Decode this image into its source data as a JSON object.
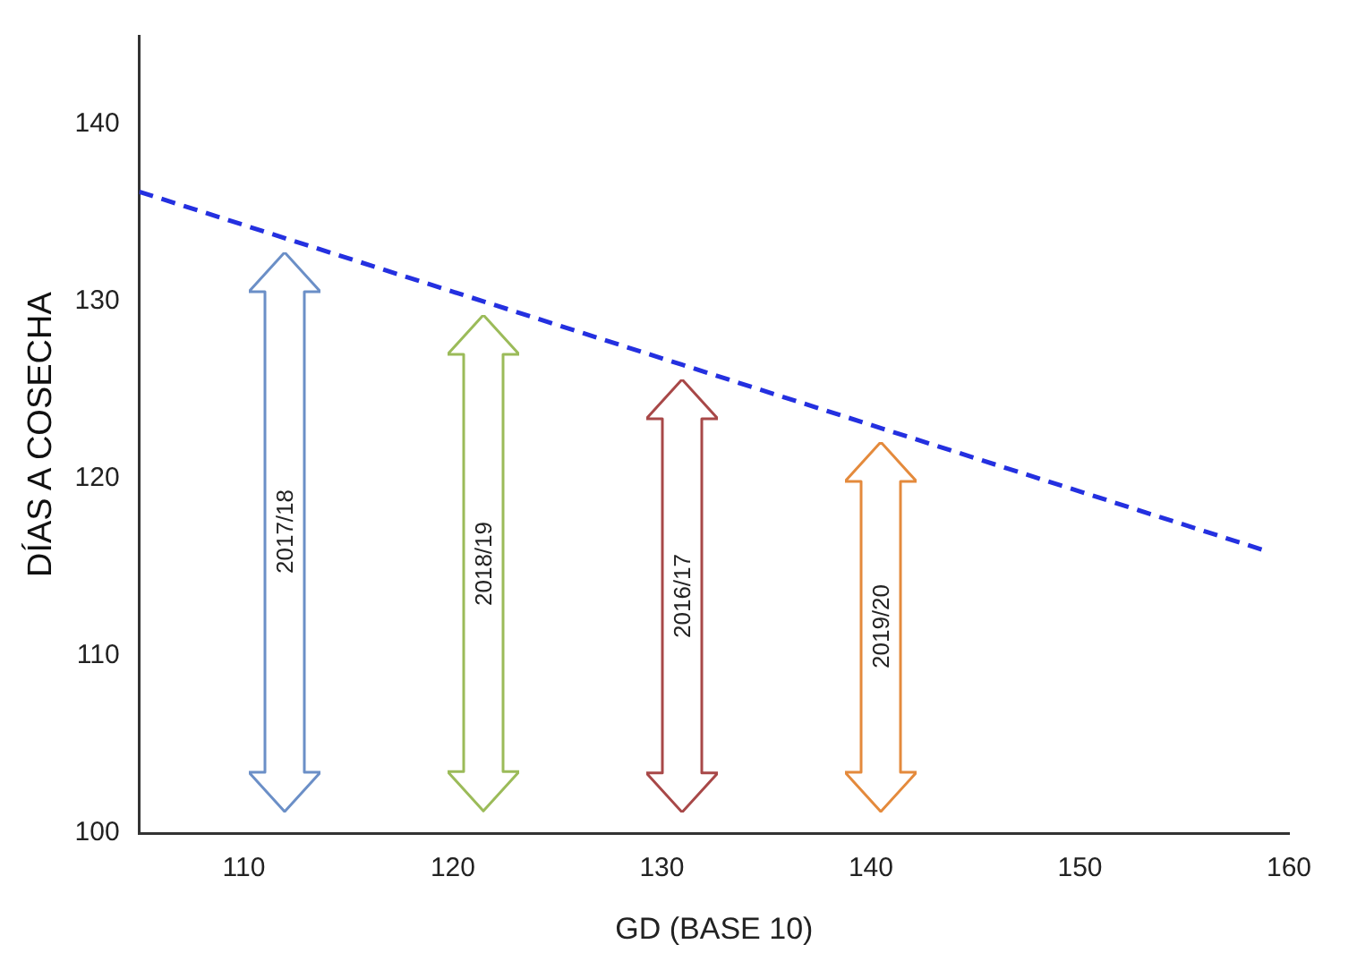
{
  "chart_data": {
    "type": "line",
    "xlabel": "GD (BASE 10)",
    "ylabel": "DÍAS A COSECHA",
    "series": [
      {
        "color": "#2430e0",
        "x": [
          105,
          159
        ],
        "values": [
          136.2,
          115.9
        ],
        "line_style": "dashed",
        "marker": "none"
      }
    ],
    "xlim": [
      105,
      160
    ],
    "xticks": [
      110,
      120,
      130,
      140,
      150,
      160
    ],
    "ylim": [
      100,
      145
    ],
    "yticks": [
      100,
      110,
      120,
      130,
      140
    ],
    "grid": false,
    "legend": false,
    "annotations": [
      "2017/18",
      "2018/19",
      "2016/17",
      "2019/20"
    ]
  }
}
